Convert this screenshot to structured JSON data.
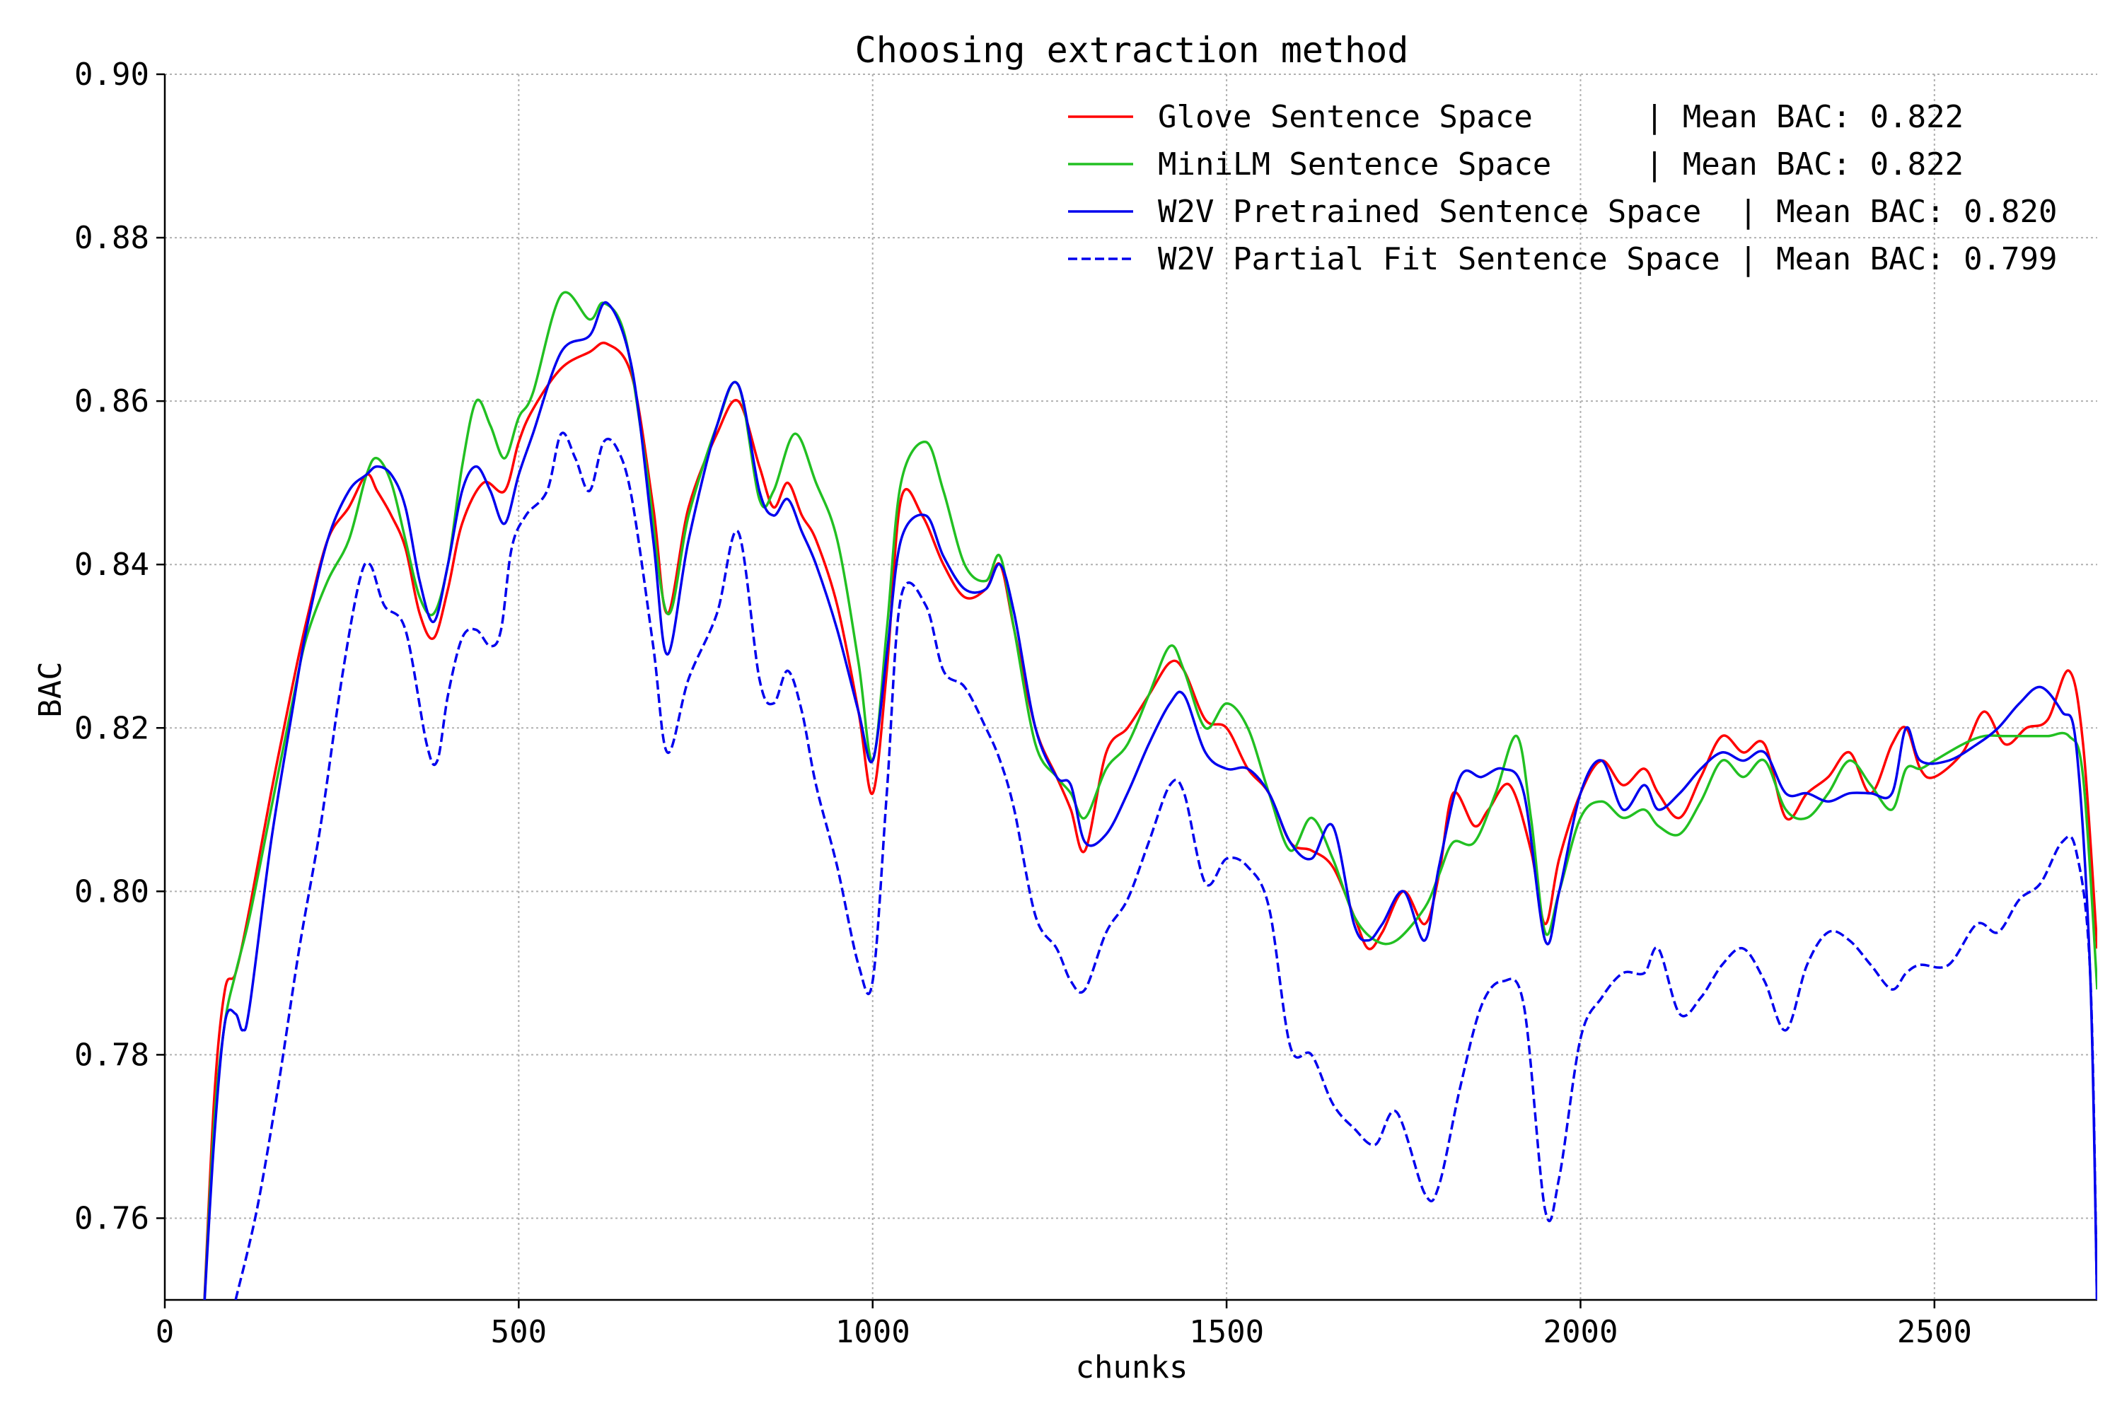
{
  "chart_data": {
    "type": "line",
    "title": "Choosing extraction method",
    "xlabel": "chunks",
    "ylabel": "BAC",
    "xlim": [
      0,
      2730
    ],
    "ylim": [
      0.75,
      0.9
    ],
    "xticks": [
      0,
      500,
      1000,
      1500,
      2000,
      2500
    ],
    "xtick_labels": [
      "0",
      "500",
      "1000",
      "1500",
      "2000",
      "2500"
    ],
    "yticks": [
      0.76,
      0.78,
      0.8,
      0.82,
      0.84,
      0.86,
      0.88,
      0.9
    ],
    "ytick_labels": [
      "0.76",
      "0.78",
      "0.80",
      "0.82",
      "0.84",
      "0.86",
      "0.88",
      "0.90"
    ],
    "grid": true,
    "legend_position": "top-right",
    "series": [
      {
        "name": "Glove Sentence Space      | Mean BAC: 0.822",
        "color": "#ff0000",
        "dash": "solid",
        "x": [
          55,
          70,
          85,
          100,
          120,
          150,
          180,
          200,
          230,
          260,
          285,
          300,
          320,
          340,
          360,
          380,
          400,
          420,
          450,
          480,
          500,
          520,
          560,
          600,
          625,
          660,
          690,
          710,
          740,
          780,
          810,
          840,
          860,
          880,
          900,
          920,
          950,
          980,
          1000,
          1020,
          1040,
          1070,
          1100,
          1130,
          1160,
          1180,
          1200,
          1230,
          1260,
          1280,
          1300,
          1330,
          1360,
          1390,
          1420,
          1440,
          1470,
          1500,
          1530,
          1560,
          1590,
          1620,
          1650,
          1680,
          1700,
          1720,
          1750,
          1780,
          1800,
          1820,
          1850,
          1870,
          1900,
          1930,
          1950,
          1970,
          2000,
          2030,
          2060,
          2090,
          2110,
          2140,
          2170,
          2200,
          2230,
          2260,
          2290,
          2320,
          2350,
          2380,
          2410,
          2440,
          2460,
          2480,
          2500,
          2540,
          2570,
          2600,
          2630,
          2660,
          2690,
          2710,
          2730
        ],
        "y": [
          0.748,
          0.775,
          0.788,
          0.79,
          0.798,
          0.812,
          0.825,
          0.833,
          0.843,
          0.847,
          0.851,
          0.849,
          0.846,
          0.842,
          0.834,
          0.831,
          0.837,
          0.845,
          0.85,
          0.849,
          0.855,
          0.859,
          0.864,
          0.866,
          0.867,
          0.863,
          0.847,
          0.834,
          0.847,
          0.856,
          0.86,
          0.852,
          0.847,
          0.85,
          0.846,
          0.843,
          0.835,
          0.822,
          0.812,
          0.827,
          0.848,
          0.846,
          0.84,
          0.836,
          0.837,
          0.84,
          0.832,
          0.82,
          0.814,
          0.81,
          0.805,
          0.817,
          0.82,
          0.824,
          0.828,
          0.827,
          0.821,
          0.82,
          0.815,
          0.812,
          0.806,
          0.805,
          0.803,
          0.797,
          0.793,
          0.795,
          0.8,
          0.796,
          0.802,
          0.812,
          0.808,
          0.81,
          0.813,
          0.805,
          0.796,
          0.804,
          0.812,
          0.816,
          0.813,
          0.815,
          0.812,
          0.809,
          0.814,
          0.819,
          0.817,
          0.818,
          0.809,
          0.812,
          0.814,
          0.817,
          0.812,
          0.818,
          0.82,
          0.815,
          0.814,
          0.817,
          0.822,
          0.818,
          0.82,
          0.821,
          0.827,
          0.818,
          0.793
        ]
      },
      {
        "name": "MiniLM Sentence Space     | Mean BAC: 0.822",
        "color": "#22c022",
        "dash": "solid",
        "x": [
          55,
          70,
          85,
          100,
          120,
          150,
          180,
          200,
          230,
          260,
          285,
          300,
          320,
          340,
          360,
          380,
          400,
          420,
          440,
          460,
          480,
          500,
          520,
          560,
          600,
          620,
          650,
          680,
          710,
          740,
          780,
          810,
          840,
          860,
          890,
          920,
          950,
          980,
          1000,
          1020,
          1040,
          1075,
          1100,
          1130,
          1160,
          1180,
          1200,
          1230,
          1260,
          1280,
          1300,
          1330,
          1360,
          1390,
          1420,
          1440,
          1470,
          1500,
          1530,
          1560,
          1590,
          1620,
          1650,
          1680,
          1710,
          1740,
          1780,
          1800,
          1820,
          1850,
          1880,
          1910,
          1930,
          1950,
          1970,
          2000,
          2030,
          2060,
          2090,
          2110,
          2140,
          2170,
          2200,
          2230,
          2260,
          2290,
          2320,
          2350,
          2380,
          2410,
          2440,
          2460,
          2480,
          2500,
          2540,
          2570,
          2600,
          2630,
          2660,
          2690,
          2710,
          2730
        ],
        "y": [
          0.748,
          0.772,
          0.784,
          0.79,
          0.797,
          0.81,
          0.823,
          0.831,
          0.838,
          0.843,
          0.851,
          0.853,
          0.85,
          0.843,
          0.836,
          0.834,
          0.84,
          0.852,
          0.86,
          0.857,
          0.853,
          0.858,
          0.861,
          0.873,
          0.87,
          0.872,
          0.868,
          0.852,
          0.834,
          0.846,
          0.857,
          0.862,
          0.848,
          0.849,
          0.856,
          0.85,
          0.843,
          0.828,
          0.816,
          0.832,
          0.85,
          0.855,
          0.849,
          0.84,
          0.838,
          0.841,
          0.832,
          0.818,
          0.814,
          0.812,
          0.809,
          0.815,
          0.818,
          0.824,
          0.83,
          0.827,
          0.82,
          0.823,
          0.82,
          0.812,
          0.805,
          0.809,
          0.804,
          0.797,
          0.794,
          0.794,
          0.798,
          0.802,
          0.806,
          0.806,
          0.812,
          0.819,
          0.809,
          0.795,
          0.8,
          0.809,
          0.811,
          0.809,
          0.81,
          0.808,
          0.807,
          0.811,
          0.816,
          0.814,
          0.816,
          0.81,
          0.809,
          0.812,
          0.816,
          0.813,
          0.81,
          0.815,
          0.815,
          0.816,
          0.818,
          0.819,
          0.819,
          0.819,
          0.819,
          0.819,
          0.814,
          0.788
        ]
      },
      {
        "name": "W2V Pretrained Sentence Space  | Mean BAC: 0.820",
        "color": "#0000ee",
        "dash": "solid",
        "x": [
          55,
          70,
          85,
          100,
          110,
          120,
          150,
          180,
          200,
          230,
          260,
          285,
          300,
          320,
          340,
          360,
          380,
          400,
          420,
          440,
          460,
          480,
          500,
          520,
          560,
          600,
          625,
          660,
          690,
          710,
          740,
          780,
          810,
          840,
          860,
          880,
          900,
          920,
          950,
          980,
          1000,
          1020,
          1040,
          1075,
          1100,
          1130,
          1160,
          1180,
          1200,
          1230,
          1260,
          1280,
          1300,
          1330,
          1360,
          1390,
          1420,
          1440,
          1470,
          1500,
          1530,
          1560,
          1590,
          1620,
          1650,
          1680,
          1700,
          1720,
          1750,
          1780,
          1800,
          1830,
          1860,
          1890,
          1920,
          1950,
          1970,
          2000,
          2030,
          2060,
          2090,
          2110,
          2140,
          2170,
          2200,
          2230,
          2260,
          2290,
          2320,
          2350,
          2380,
          2410,
          2440,
          2460,
          2480,
          2520,
          2560,
          2590,
          2620,
          2650,
          2680,
          2700,
          2720,
          2730
        ],
        "y": [
          0.748,
          0.77,
          0.784,
          0.785,
          0.783,
          0.786,
          0.806,
          0.822,
          0.832,
          0.843,
          0.849,
          0.851,
          0.852,
          0.851,
          0.847,
          0.838,
          0.833,
          0.84,
          0.849,
          0.852,
          0.849,
          0.845,
          0.851,
          0.856,
          0.866,
          0.868,
          0.872,
          0.864,
          0.843,
          0.829,
          0.843,
          0.857,
          0.862,
          0.849,
          0.846,
          0.848,
          0.844,
          0.84,
          0.832,
          0.822,
          0.816,
          0.829,
          0.843,
          0.846,
          0.841,
          0.837,
          0.837,
          0.84,
          0.834,
          0.82,
          0.814,
          0.813,
          0.806,
          0.807,
          0.812,
          0.818,
          0.823,
          0.824,
          0.817,
          0.815,
          0.815,
          0.812,
          0.806,
          0.804,
          0.808,
          0.796,
          0.794,
          0.796,
          0.8,
          0.794,
          0.803,
          0.814,
          0.814,
          0.815,
          0.812,
          0.794,
          0.8,
          0.812,
          0.816,
          0.81,
          0.813,
          0.81,
          0.812,
          0.815,
          0.817,
          0.816,
          0.817,
          0.812,
          0.812,
          0.811,
          0.812,
          0.812,
          0.812,
          0.82,
          0.816,
          0.816,
          0.818,
          0.82,
          0.823,
          0.825,
          0.822,
          0.818,
          0.79,
          0.748
        ]
      },
      {
        "name": "W2V Partial Fit Sentence Space | Mean BAC: 0.799",
        "color": "#0000ee",
        "dash": "dashed",
        "x": [
          100,
          130,
          160,
          190,
          220,
          250,
          275,
          290,
          310,
          340,
          370,
          385,
          400,
          420,
          440,
          460,
          475,
          490,
          510,
          540,
          560,
          580,
          600,
          620,
          640,
          660,
          690,
          710,
          740,
          780,
          810,
          840,
          860,
          880,
          900,
          920,
          950,
          980,
          1000,
          1020,
          1040,
          1075,
          1100,
          1130,
          1160,
          1180,
          1200,
          1230,
          1260,
          1280,
          1300,
          1330,
          1360,
          1390,
          1420,
          1440,
          1470,
          1500,
          1530,
          1560,
          1590,
          1620,
          1650,
          1680,
          1710,
          1740,
          1780,
          1800,
          1830,
          1860,
          1890,
          1920,
          1950,
          1970,
          2000,
          2030,
          2060,
          2090,
          2110,
          2140,
          2170,
          2200,
          2230,
          2260,
          2290,
          2320,
          2350,
          2380,
          2410,
          2440,
          2460,
          2480,
          2520,
          2560,
          2590,
          2620,
          2650,
          2680,
          2700,
          2720,
          2730
        ],
        "y": [
          0.75,
          0.761,
          0.776,
          0.793,
          0.808,
          0.826,
          0.838,
          0.84,
          0.835,
          0.832,
          0.818,
          0.816,
          0.824,
          0.831,
          0.832,
          0.83,
          0.832,
          0.842,
          0.846,
          0.849,
          0.856,
          0.853,
          0.849,
          0.855,
          0.854,
          0.848,
          0.83,
          0.817,
          0.826,
          0.834,
          0.844,
          0.826,
          0.823,
          0.827,
          0.822,
          0.813,
          0.803,
          0.791,
          0.789,
          0.812,
          0.836,
          0.835,
          0.827,
          0.825,
          0.82,
          0.816,
          0.81,
          0.797,
          0.793,
          0.789,
          0.788,
          0.795,
          0.799,
          0.806,
          0.813,
          0.812,
          0.801,
          0.804,
          0.803,
          0.798,
          0.781,
          0.78,
          0.774,
          0.771,
          0.769,
          0.773,
          0.763,
          0.764,
          0.776,
          0.786,
          0.789,
          0.786,
          0.761,
          0.765,
          0.782,
          0.787,
          0.79,
          0.79,
          0.793,
          0.785,
          0.787,
          0.791,
          0.793,
          0.789,
          0.783,
          0.791,
          0.795,
          0.794,
          0.791,
          0.788,
          0.79,
          0.791,
          0.791,
          0.796,
          0.795,
          0.799,
          0.801,
          0.806,
          0.805,
          0.79,
          0.748
        ]
      }
    ]
  }
}
